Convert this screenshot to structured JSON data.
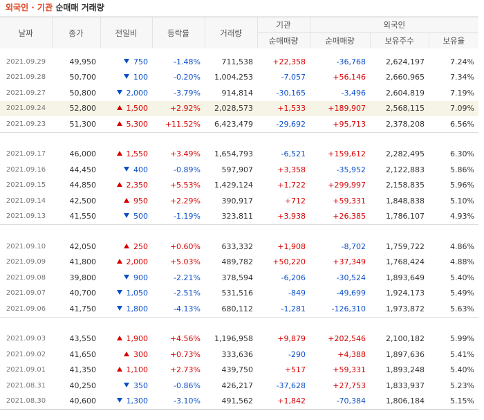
{
  "title": {
    "highlight": "외국인 · 기관",
    "rest": "순매매 거래량"
  },
  "header": {
    "date": "날짜",
    "close": "종가",
    "change": "전일비",
    "rate": "등락률",
    "volume": "거래량",
    "inst": "기관",
    "foreign": "외국인",
    "inst_net": "순매매량",
    "foreign_net": "순매매량",
    "holdings": "보유주수",
    "ratio": "보유율"
  },
  "groups": [
    [
      {
        "date": "2021.09.29",
        "close": "49,950",
        "dir": "down",
        "change": "750",
        "rate": "-1.48%",
        "volume": "711,538",
        "inst": "+22,358",
        "foreign": "-36,768",
        "holdings": "2,624,197",
        "ratio": "7.24%"
      },
      {
        "date": "2021.09.28",
        "close": "50,700",
        "dir": "down",
        "change": "100",
        "rate": "-0.20%",
        "volume": "1,004,253",
        "inst": "-7,057",
        "foreign": "+56,146",
        "holdings": "2,660,965",
        "ratio": "7.34%"
      },
      {
        "date": "2021.09.27",
        "close": "50,800",
        "dir": "down",
        "change": "2,000",
        "rate": "-3.79%",
        "volume": "914,814",
        "inst": "-30,165",
        "foreign": "-3,496",
        "holdings": "2,604,819",
        "ratio": "7.19%"
      },
      {
        "date": "2021.09.24",
        "close": "52,800",
        "dir": "up",
        "change": "1,500",
        "rate": "+2.92%",
        "volume": "2,028,573",
        "inst": "+1,533",
        "foreign": "+189,907",
        "holdings": "2,568,115",
        "ratio": "7.09%",
        "highlight": true
      },
      {
        "date": "2021.09.23",
        "close": "51,300",
        "dir": "up",
        "change": "5,300",
        "rate": "+11.52%",
        "volume": "6,423,479",
        "inst": "-29,692",
        "foreign": "+95,713",
        "holdings": "2,378,208",
        "ratio": "6.56%"
      }
    ],
    [
      {
        "date": "2021.09.17",
        "close": "46,000",
        "dir": "up",
        "change": "1,550",
        "rate": "+3.49%",
        "volume": "1,654,793",
        "inst": "-6,521",
        "foreign": "+159,612",
        "holdings": "2,282,495",
        "ratio": "6.30%"
      },
      {
        "date": "2021.09.16",
        "close": "44,450",
        "dir": "down",
        "change": "400",
        "rate": "-0.89%",
        "volume": "597,907",
        "inst": "+3,358",
        "foreign": "-35,952",
        "holdings": "2,122,883",
        "ratio": "5.86%"
      },
      {
        "date": "2021.09.15",
        "close": "44,850",
        "dir": "up",
        "change": "2,350",
        "rate": "+5.53%",
        "volume": "1,429,124",
        "inst": "+1,722",
        "foreign": "+299,997",
        "holdings": "2,158,835",
        "ratio": "5.96%"
      },
      {
        "date": "2021.09.14",
        "close": "42,500",
        "dir": "up",
        "change": "950",
        "rate": "+2.29%",
        "volume": "390,917",
        "inst": "+712",
        "foreign": "+59,331",
        "holdings": "1,848,838",
        "ratio": "5.10%"
      },
      {
        "date": "2021.09.13",
        "close": "41,550",
        "dir": "down",
        "change": "500",
        "rate": "-1.19%",
        "volume": "323,811",
        "inst": "+3,938",
        "foreign": "+26,385",
        "holdings": "1,786,107",
        "ratio": "4.93%"
      }
    ],
    [
      {
        "date": "2021.09.10",
        "close": "42,050",
        "dir": "up",
        "change": "250",
        "rate": "+0.60%",
        "volume": "633,332",
        "inst": "+1,908",
        "foreign": "-8,702",
        "holdings": "1,759,722",
        "ratio": "4.86%"
      },
      {
        "date": "2021.09.09",
        "close": "41,800",
        "dir": "up",
        "change": "2,000",
        "rate": "+5.03%",
        "volume": "489,782",
        "inst": "+50,220",
        "foreign": "+37,349",
        "holdings": "1,768,424",
        "ratio": "4.88%"
      },
      {
        "date": "2021.09.08",
        "close": "39,800",
        "dir": "down",
        "change": "900",
        "rate": "-2.21%",
        "volume": "378,594",
        "inst": "-6,206",
        "foreign": "-30,524",
        "holdings": "1,893,649",
        "ratio": "5.40%"
      },
      {
        "date": "2021.09.07",
        "close": "40,700",
        "dir": "down",
        "change": "1,050",
        "rate": "-2.51%",
        "volume": "531,516",
        "inst": "-849",
        "foreign": "-49,699",
        "holdings": "1,924,173",
        "ratio": "5.49%"
      },
      {
        "date": "2021.09.06",
        "close": "41,750",
        "dir": "down",
        "change": "1,800",
        "rate": "-4.13%",
        "volume": "680,112",
        "inst": "-1,281",
        "foreign": "-126,310",
        "holdings": "1,973,872",
        "ratio": "5.63%"
      }
    ],
    [
      {
        "date": "2021.09.03",
        "close": "43,550",
        "dir": "up",
        "change": "1,900",
        "rate": "+4.56%",
        "volume": "1,196,958",
        "inst": "+9,879",
        "foreign": "+202,546",
        "holdings": "2,100,182",
        "ratio": "5.99%"
      },
      {
        "date": "2021.09.02",
        "close": "41,650",
        "dir": "up",
        "change": "300",
        "rate": "+0.73%",
        "volume": "333,636",
        "inst": "-290",
        "foreign": "+4,388",
        "holdings": "1,897,636",
        "ratio": "5.41%"
      },
      {
        "date": "2021.09.01",
        "close": "41,350",
        "dir": "up",
        "change": "1,100",
        "rate": "+2.73%",
        "volume": "439,750",
        "inst": "+517",
        "foreign": "+59,331",
        "holdings": "1,893,248",
        "ratio": "5.40%"
      },
      {
        "date": "2021.08.31",
        "close": "40,250",
        "dir": "down",
        "change": "350",
        "rate": "-0.86%",
        "volume": "426,217",
        "inst": "-37,628",
        "foreign": "+27,753",
        "holdings": "1,833,937",
        "ratio": "5.23%"
      },
      {
        "date": "2021.08.30",
        "close": "40,600",
        "dir": "down",
        "change": "1,300",
        "rate": "-3.10%",
        "volume": "491,562",
        "inst": "+1,842",
        "foreign": "-70,384",
        "holdings": "1,806,184",
        "ratio": "5.15%"
      }
    ]
  ]
}
